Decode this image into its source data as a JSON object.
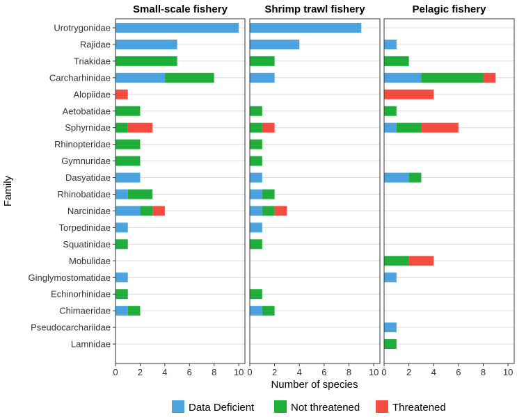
{
  "chart_data": {
    "type": "bar",
    "orientation": "horizontal",
    "stacked": true,
    "ylabel": "Family",
    "xlabel": "Number of species",
    "xlim": [
      0,
      10.5
    ],
    "xticks": [
      "0",
      "2",
      "4",
      "6",
      "8",
      "10"
    ],
    "categories": [
      "Urotrygonidae",
      "Rajidae",
      "Triakidae",
      "Carcharhinidae",
      "Alopiidae",
      "Aetobatidae",
      "Sphyrnidae",
      "Rhinopteridae",
      "Gymnuridae",
      "Dasyatidae",
      "Rhinobatidae",
      "Narcinidae",
      "Torpedinidae",
      "Squatinidae",
      "Mobulidae",
      "Ginglymostomatidae",
      "Echinorhinidae",
      "Chimaeridae",
      "Pseudocarchariidae",
      "Lamnidae"
    ],
    "legend": [
      {
        "name": "Data Deficient",
        "color": "#4aa3df"
      },
      {
        "name": "Not threatened",
        "color": "#1fae3a"
      },
      {
        "name": "Threatened",
        "color": "#f44d3f"
      }
    ],
    "panels": [
      {
        "title": "Small-scale fishery",
        "series": [
          {
            "name": "Data Deficient",
            "values": [
              10,
              5,
              0,
              4,
              0,
              0,
              0,
              0,
              0,
              2,
              1,
              2,
              1,
              0,
              0,
              1,
              0,
              1,
              0,
              0
            ]
          },
          {
            "name": "Not threatened",
            "values": [
              0,
              0,
              5,
              4,
              0,
              2,
              1,
              2,
              2,
              0,
              2,
              1,
              0,
              1,
              0,
              0,
              1,
              1,
              0,
              0
            ]
          },
          {
            "name": "Threatened",
            "values": [
              0,
              0,
              0,
              0,
              1,
              0,
              2,
              0,
              0,
              0,
              0,
              1,
              0,
              0,
              0,
              0,
              0,
              0,
              0,
              0
            ]
          }
        ]
      },
      {
        "title": "Shrimp trawl fishery",
        "series": [
          {
            "name": "Data Deficient",
            "values": [
              9,
              4,
              0,
              2,
              0,
              0,
              0,
              0,
              0,
              1,
              1,
              1,
              1,
              0,
              0,
              0,
              0,
              1,
              0,
              0
            ]
          },
          {
            "name": "Not threatened",
            "values": [
              0,
              0,
              2,
              0,
              0,
              1,
              1,
              1,
              1,
              0,
              1,
              1,
              0,
              1,
              0,
              0,
              1,
              1,
              0,
              0
            ]
          },
          {
            "name": "Threatened",
            "values": [
              0,
              0,
              0,
              0,
              0,
              0,
              1,
              0,
              0,
              0,
              0,
              1,
              0,
              0,
              0,
              0,
              0,
              0,
              0,
              0
            ]
          }
        ]
      },
      {
        "title": "Pelagic fishery",
        "series": [
          {
            "name": "Data Deficient",
            "values": [
              0,
              1,
              0,
              3,
              0,
              0,
              1,
              0,
              0,
              2,
              0,
              0,
              0,
              0,
              0,
              1,
              0,
              0,
              1,
              0
            ]
          },
          {
            "name": "Not threatened",
            "values": [
              0,
              0,
              2,
              5,
              0,
              1,
              2,
              0,
              0,
              1,
              0,
              0,
              0,
              0,
              2,
              0,
              0,
              0,
              0,
              1
            ]
          },
          {
            "name": "Threatened",
            "values": [
              0,
              0,
              0,
              1,
              4,
              0,
              3,
              0,
              0,
              0,
              0,
              0,
              0,
              0,
              2,
              0,
              0,
              0,
              0,
              0
            ]
          }
        ]
      }
    ]
  }
}
